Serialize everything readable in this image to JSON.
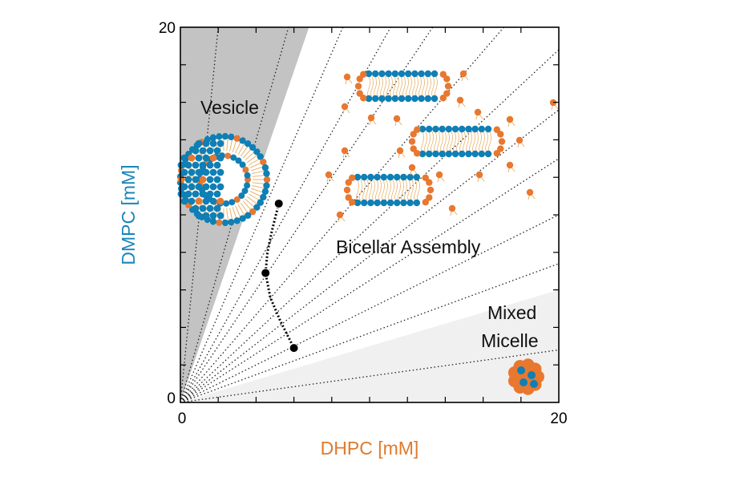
{
  "chart_data": {
    "type": "scatter",
    "xlabel": "DHPC [mM]",
    "ylabel": "DMPC [mM]",
    "xlim": [
      0,
      20
    ],
    "ylim": [
      0,
      20
    ],
    "x_ticks": [
      0,
      20
    ],
    "y_ticks": [
      0,
      20
    ],
    "grid": false,
    "colors": {
      "xlabel": "#e07a2c",
      "ylabel": "#1a86b8",
      "dmpc": "#0f7fb5",
      "dhpc": "#e8782f",
      "vesicle_region": "#c3c3c3",
      "micelle_region": "#f0f0f0",
      "points": "#000000"
    },
    "regions": [
      {
        "label": "Vesicle",
        "polygon": [
          [
            0,
            0
          ],
          [
            6.8,
            20
          ],
          [
            0,
            20
          ]
        ]
      },
      {
        "label": "Bicellar Assembly",
        "polygon": [
          [
            0,
            0
          ],
          [
            6.8,
            20
          ],
          [
            20,
            20
          ],
          [
            20,
            6.0
          ]
        ]
      },
      {
        "label": "Mixed Micelle",
        "polygon": [
          [
            0,
            0
          ],
          [
            20,
            6.0
          ],
          [
            20,
            0
          ]
        ]
      }
    ],
    "region_labels": [
      "Vesicle",
      "Bicellar Assembly",
      "Mixed",
      "Micelle"
    ],
    "series": [
      {
        "values": [
          [
            5.2,
            10.6
          ],
          [
            4.5,
            6.9
          ],
          [
            6.0,
            2.9
          ]
        ]
      }
    ],
    "boundary_curve": [
      [
        5.2,
        10.6
      ],
      [
        4.85,
        9.2
      ],
      [
        4.6,
        8.0
      ],
      [
        4.5,
        6.9
      ],
      [
        4.75,
        5.6
      ],
      [
        5.3,
        4.3
      ],
      [
        6.0,
        2.9
      ]
    ],
    "dilution_line_slopes": [
      10,
      3.5,
      2.33,
      1.8,
      1.5,
      1.17,
      0.94,
      0.78,
      0.65,
      0.5,
      0.37,
      0.14
    ]
  }
}
